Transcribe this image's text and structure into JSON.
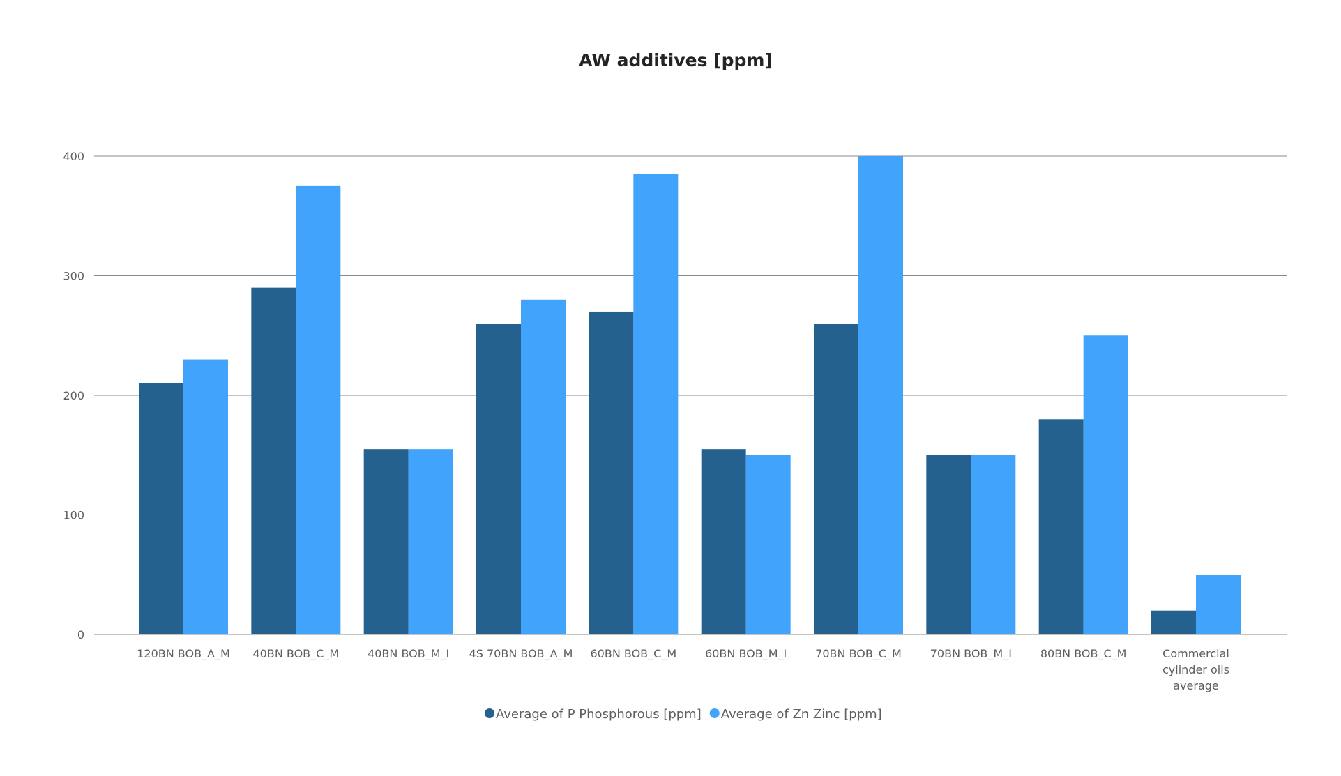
{
  "chart_data": {
    "type": "bar",
    "title": "AW additives [ppm]",
    "xlabel": "",
    "ylabel": "",
    "ylim": [
      0,
      400
    ],
    "yticks": [
      0,
      100,
      200,
      300,
      400
    ],
    "grid": true,
    "legend_position": "bottom-center",
    "categories": [
      [
        "120BN BOB_A_M"
      ],
      [
        "40BN BOB_C_M"
      ],
      [
        "40BN BOB_M_I"
      ],
      [
        "4S 70BN BOB_A_M"
      ],
      [
        "60BN BOB_C_M"
      ],
      [
        "60BN BOB_M_I"
      ],
      [
        "70BN BOB_C_M"
      ],
      [
        "70BN BOB_M_I"
      ],
      [
        "80BN BOB_C_M"
      ],
      [
        "Commercial",
        "cylinder oils",
        "average"
      ]
    ],
    "series": [
      {
        "name": "Average of P Phosphorous [ppm]",
        "color": "#25618f",
        "values": [
          210,
          290,
          155,
          260,
          270,
          155,
          260,
          150,
          180,
          20
        ]
      },
      {
        "name": "Average of Zn Zinc [ppm]",
        "color": "#41a3fc",
        "values": [
          230,
          375,
          155,
          280,
          385,
          150,
          400,
          150,
          250,
          50
        ]
      }
    ]
  }
}
